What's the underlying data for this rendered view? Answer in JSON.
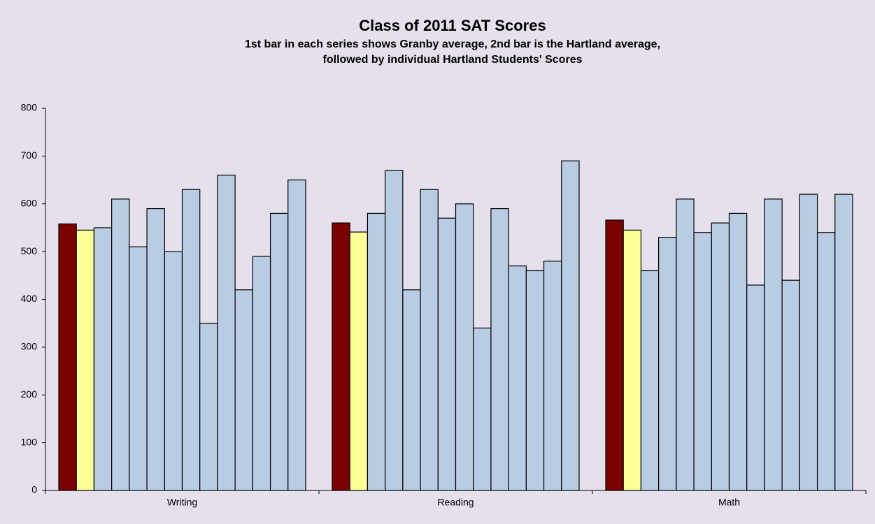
{
  "chart_data": {
    "type": "bar",
    "title": "Class of 2011 SAT Scores",
    "subtitle": [
      "1st bar in each series shows Granby average, 2nd bar is the Hartland average,",
      "followed by individual Hartland Students' Scores"
    ],
    "categories": [
      "Writing",
      "Reading",
      "Math"
    ],
    "series": [
      {
        "color": "#7b0000",
        "values": [
          558,
          560,
          566
        ]
      },
      {
        "color": "#ffff99",
        "values": [
          545,
          541,
          545
        ]
      },
      {
        "color": "#b8cce4",
        "values": [
          550,
          580,
          460
        ]
      },
      {
        "color": "#b8cce4",
        "values": [
          610,
          670,
          530
        ]
      },
      {
        "color": "#b8cce4",
        "values": [
          510,
          420,
          610
        ]
      },
      {
        "color": "#b8cce4",
        "values": [
          590,
          630,
          540
        ]
      },
      {
        "color": "#b8cce4",
        "values": [
          500,
          570,
          560
        ]
      },
      {
        "color": "#b8cce4",
        "values": [
          630,
          600,
          580
        ]
      },
      {
        "color": "#b8cce4",
        "values": [
          350,
          340,
          430
        ]
      },
      {
        "color": "#b8cce4",
        "values": [
          660,
          590,
          610
        ]
      },
      {
        "color": "#b8cce4",
        "values": [
          420,
          470,
          440
        ]
      },
      {
        "color": "#b8cce4",
        "values": [
          490,
          460,
          620
        ]
      },
      {
        "color": "#b8cce4",
        "values": [
          580,
          480,
          540
        ]
      },
      {
        "color": "#b8cce4",
        "values": [
          650,
          690,
          620
        ]
      }
    ],
    "ylim": [
      0,
      800
    ],
    "yticks": [
      0,
      100,
      200,
      300,
      400,
      500,
      600,
      700,
      800
    ],
    "grid": false
  }
}
